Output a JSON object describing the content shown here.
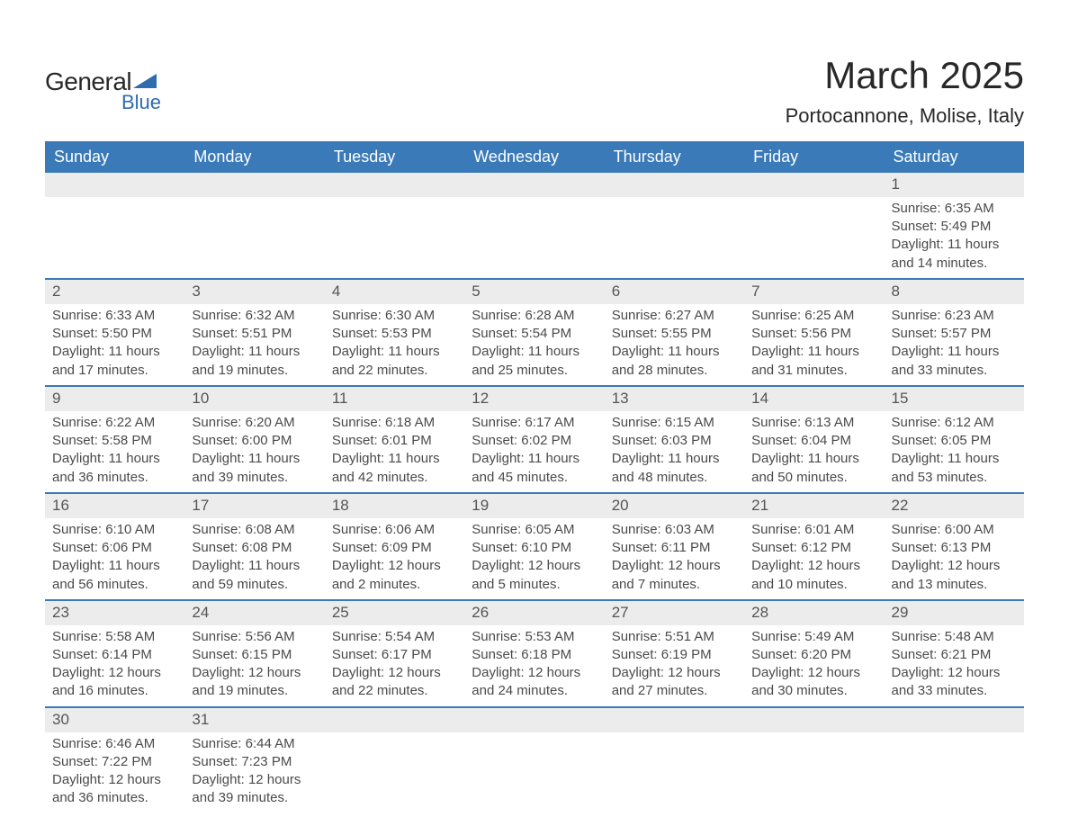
{
  "brand": {
    "name_left": "General",
    "name_right": "Blue"
  },
  "colors": {
    "header_bg": "#3a7ab8",
    "header_fg": "#ffffff",
    "band_bg": "#ececec",
    "row_divider": "#3a7ab8",
    "text": "#404040",
    "title": "#282828"
  },
  "title": "March 2025",
  "location": "Portocannone, Molise, Italy",
  "weekdays": [
    "Sunday",
    "Monday",
    "Tuesday",
    "Wednesday",
    "Thursday",
    "Friday",
    "Saturday"
  ],
  "first_day_column": 6,
  "days": [
    {
      "n": 1,
      "sunrise": "6:35 AM",
      "sunset": "5:49 PM",
      "daylight": "11 hours and 14 minutes."
    },
    {
      "n": 2,
      "sunrise": "6:33 AM",
      "sunset": "5:50 PM",
      "daylight": "11 hours and 17 minutes."
    },
    {
      "n": 3,
      "sunrise": "6:32 AM",
      "sunset": "5:51 PM",
      "daylight": "11 hours and 19 minutes."
    },
    {
      "n": 4,
      "sunrise": "6:30 AM",
      "sunset": "5:53 PM",
      "daylight": "11 hours and 22 minutes."
    },
    {
      "n": 5,
      "sunrise": "6:28 AM",
      "sunset": "5:54 PM",
      "daylight": "11 hours and 25 minutes."
    },
    {
      "n": 6,
      "sunrise": "6:27 AM",
      "sunset": "5:55 PM",
      "daylight": "11 hours and 28 minutes."
    },
    {
      "n": 7,
      "sunrise": "6:25 AM",
      "sunset": "5:56 PM",
      "daylight": "11 hours and 31 minutes."
    },
    {
      "n": 8,
      "sunrise": "6:23 AM",
      "sunset": "5:57 PM",
      "daylight": "11 hours and 33 minutes."
    },
    {
      "n": 9,
      "sunrise": "6:22 AM",
      "sunset": "5:58 PM",
      "daylight": "11 hours and 36 minutes."
    },
    {
      "n": 10,
      "sunrise": "6:20 AM",
      "sunset": "6:00 PM",
      "daylight": "11 hours and 39 minutes."
    },
    {
      "n": 11,
      "sunrise": "6:18 AM",
      "sunset": "6:01 PM",
      "daylight": "11 hours and 42 minutes."
    },
    {
      "n": 12,
      "sunrise": "6:17 AM",
      "sunset": "6:02 PM",
      "daylight": "11 hours and 45 minutes."
    },
    {
      "n": 13,
      "sunrise": "6:15 AM",
      "sunset": "6:03 PM",
      "daylight": "11 hours and 48 minutes."
    },
    {
      "n": 14,
      "sunrise": "6:13 AM",
      "sunset": "6:04 PM",
      "daylight": "11 hours and 50 minutes."
    },
    {
      "n": 15,
      "sunrise": "6:12 AM",
      "sunset": "6:05 PM",
      "daylight": "11 hours and 53 minutes."
    },
    {
      "n": 16,
      "sunrise": "6:10 AM",
      "sunset": "6:06 PM",
      "daylight": "11 hours and 56 minutes."
    },
    {
      "n": 17,
      "sunrise": "6:08 AM",
      "sunset": "6:08 PM",
      "daylight": "11 hours and 59 minutes."
    },
    {
      "n": 18,
      "sunrise": "6:06 AM",
      "sunset": "6:09 PM",
      "daylight": "12 hours and 2 minutes."
    },
    {
      "n": 19,
      "sunrise": "6:05 AM",
      "sunset": "6:10 PM",
      "daylight": "12 hours and 5 minutes."
    },
    {
      "n": 20,
      "sunrise": "6:03 AM",
      "sunset": "6:11 PM",
      "daylight": "12 hours and 7 minutes."
    },
    {
      "n": 21,
      "sunrise": "6:01 AM",
      "sunset": "6:12 PM",
      "daylight": "12 hours and 10 minutes."
    },
    {
      "n": 22,
      "sunrise": "6:00 AM",
      "sunset": "6:13 PM",
      "daylight": "12 hours and 13 minutes."
    },
    {
      "n": 23,
      "sunrise": "5:58 AM",
      "sunset": "6:14 PM",
      "daylight": "12 hours and 16 minutes."
    },
    {
      "n": 24,
      "sunrise": "5:56 AM",
      "sunset": "6:15 PM",
      "daylight": "12 hours and 19 minutes."
    },
    {
      "n": 25,
      "sunrise": "5:54 AM",
      "sunset": "6:17 PM",
      "daylight": "12 hours and 22 minutes."
    },
    {
      "n": 26,
      "sunrise": "5:53 AM",
      "sunset": "6:18 PM",
      "daylight": "12 hours and 24 minutes."
    },
    {
      "n": 27,
      "sunrise": "5:51 AM",
      "sunset": "6:19 PM",
      "daylight": "12 hours and 27 minutes."
    },
    {
      "n": 28,
      "sunrise": "5:49 AM",
      "sunset": "6:20 PM",
      "daylight": "12 hours and 30 minutes."
    },
    {
      "n": 29,
      "sunrise": "5:48 AM",
      "sunset": "6:21 PM",
      "daylight": "12 hours and 33 minutes."
    },
    {
      "n": 30,
      "sunrise": "6:46 AM",
      "sunset": "7:22 PM",
      "daylight": "12 hours and 36 minutes."
    },
    {
      "n": 31,
      "sunrise": "6:44 AM",
      "sunset": "7:23 PM",
      "daylight": "12 hours and 39 minutes."
    }
  ],
  "labels": {
    "sunrise": "Sunrise: ",
    "sunset": "Sunset: ",
    "daylight": "Daylight: "
  }
}
